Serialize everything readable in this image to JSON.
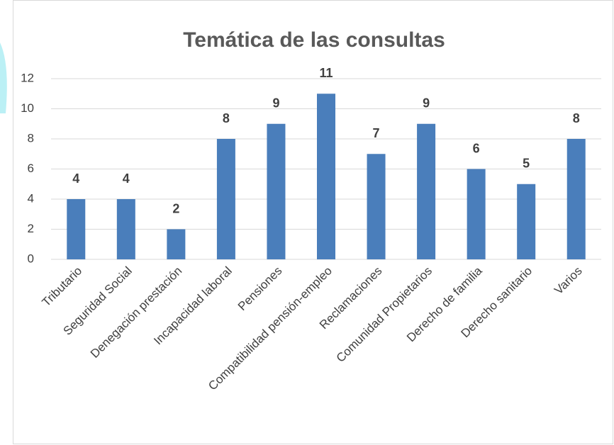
{
  "chart_data": {
    "type": "bar",
    "title": "Temática de las consultas",
    "categories": [
      "Tributario",
      "Seguridad Social",
      "Denegación prestación",
      "Incapacidad laboral",
      "Pensiones",
      "Compatibilidad pensión-empleo",
      "Reclamaciones",
      "Comunidad Propietarios",
      "Derecho de familia",
      "Derecho sanitario",
      "Varios"
    ],
    "values": [
      4,
      4,
      2,
      8,
      9,
      11,
      7,
      9,
      6,
      5,
      8
    ],
    "color": "#4a7ebb",
    "ylim": [
      0,
      12
    ],
    "yticks": [
      0,
      2,
      4,
      6,
      8,
      10,
      12
    ],
    "grid": true
  }
}
